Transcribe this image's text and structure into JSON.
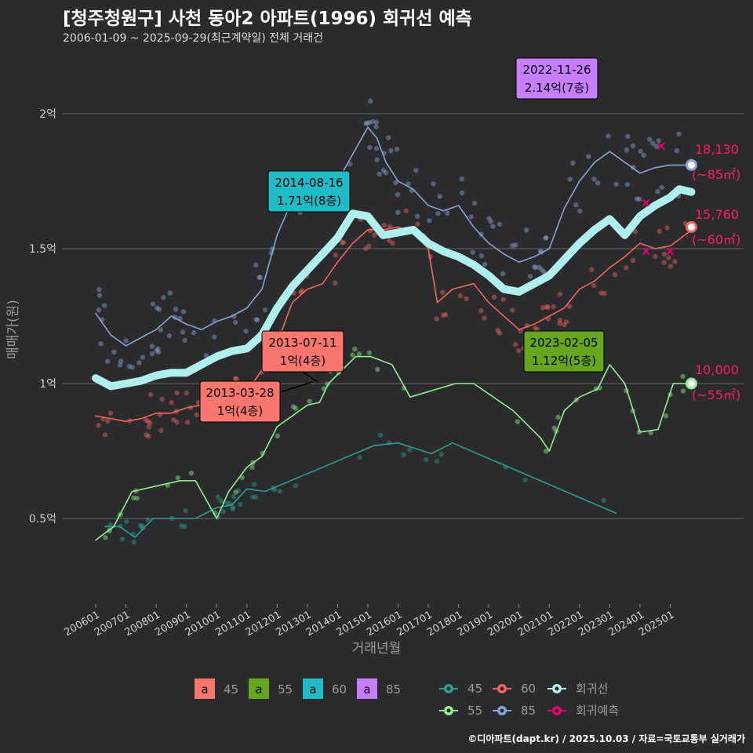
{
  "title": "[청주청원구] 사천 동아2 아파트(1996) 회귀선 예측",
  "subtitle": "2006-01-09 ~ 2025-09-29(최근계약일) 전체 거래건",
  "credit": "©디아파트(dapt.kr) / 2025.10.03 / 자료=국토교통부 실거래가",
  "chart_data": {
    "type": "line",
    "xlabel": "거래년월",
    "ylabel": "매매가(원)",
    "x_ticks": [
      "200601",
      "200701",
      "200801",
      "200901",
      "201001",
      "201101",
      "201201",
      "201301",
      "201401",
      "201501",
      "201601",
      "201701",
      "201801",
      "201901",
      "202001",
      "202101",
      "202201",
      "202301",
      "202401",
      "202501"
    ],
    "y_ticks": [
      {
        "value": 0.5,
        "label": "0.5억"
      },
      {
        "value": 1.0,
        "label": "1억"
      },
      {
        "value": 1.5,
        "label": "1.5억"
      },
      {
        "value": 2.0,
        "label": "2억"
      }
    ],
    "ylim": [
      0.22,
      2.25
    ],
    "xlim": [
      2005.7,
      2026.5
    ],
    "series": [
      {
        "name": "45",
        "color": "#2a9d8f",
        "points": [
          [
            2006.3,
            0.47
          ],
          [
            2006.8,
            0.47
          ],
          [
            2007.3,
            0.43
          ],
          [
            2007.9,
            0.5
          ],
          [
            2009.3,
            0.5
          ],
          [
            2010.0,
            0.54
          ],
          [
            2010.5,
            0.55
          ],
          [
            2011.0,
            0.61
          ],
          [
            2011.6,
            0.6
          ],
          [
            2015.2,
            0.77
          ],
          [
            2016.0,
            0.78
          ],
          [
            2017.1,
            0.74
          ],
          [
            2017.8,
            0.78
          ],
          [
            2023.2,
            0.52
          ]
        ]
      },
      {
        "name": "55",
        "color": "#90ee90",
        "points": [
          [
            2006.0,
            0.42
          ],
          [
            2006.6,
            0.47
          ],
          [
            2007.2,
            0.6
          ],
          [
            2008.0,
            0.62
          ],
          [
            2008.8,
            0.64
          ],
          [
            2009.3,
            0.64
          ],
          [
            2010.0,
            0.5
          ],
          [
            2010.4,
            0.6
          ],
          [
            2011.0,
            0.69
          ],
          [
            2011.5,
            0.73
          ],
          [
            2012.0,
            0.84
          ],
          [
            2012.5,
            0.88
          ],
          [
            2013.0,
            0.92
          ],
          [
            2013.4,
            0.93
          ],
          [
            2013.7,
            1.0
          ],
          [
            2014.6,
            1.1
          ],
          [
            2015.1,
            1.1
          ],
          [
            2015.8,
            1.07
          ],
          [
            2016.4,
            0.95
          ],
          [
            2017.9,
            1.0
          ],
          [
            2018.5,
            1.0
          ],
          [
            2019.8,
            0.9
          ],
          [
            2020.7,
            0.8
          ],
          [
            2021.0,
            0.75
          ],
          [
            2021.5,
            0.9
          ],
          [
            2022.0,
            0.95
          ],
          [
            2022.6,
            0.98
          ],
          [
            2023.0,
            1.07
          ],
          [
            2023.5,
            1.0
          ],
          [
            2024.0,
            0.82
          ],
          [
            2024.6,
            0.83
          ],
          [
            2025.1,
            1.0
          ],
          [
            2025.6,
            1.0
          ]
        ]
      },
      {
        "name": "60",
        "color": "#f0665e",
        "points": [
          [
            2006.0,
            0.88
          ],
          [
            2006.5,
            0.87
          ],
          [
            2007.0,
            0.86
          ],
          [
            2007.5,
            0.87
          ],
          [
            2008.0,
            0.89
          ],
          [
            2008.5,
            0.89
          ],
          [
            2009.0,
            0.91
          ],
          [
            2009.5,
            0.92
          ],
          [
            2010.0,
            0.93
          ],
          [
            2010.5,
            0.94
          ],
          [
            2011.0,
            0.97
          ],
          [
            2011.5,
            1.05
          ],
          [
            2012.0,
            1.15
          ],
          [
            2012.5,
            1.3
          ],
          [
            2013.0,
            1.35
          ],
          [
            2013.5,
            1.37
          ],
          [
            2014.0,
            1.45
          ],
          [
            2014.5,
            1.52
          ],
          [
            2015.0,
            1.57
          ],
          [
            2015.5,
            1.57
          ],
          [
            2016.0,
            1.58
          ],
          [
            2016.5,
            1.56
          ],
          [
            2017.0,
            1.5
          ],
          [
            2017.3,
            1.3
          ],
          [
            2017.8,
            1.35
          ],
          [
            2018.5,
            1.37
          ],
          [
            2019.0,
            1.3
          ],
          [
            2019.5,
            1.25
          ],
          [
            2020.0,
            1.2
          ],
          [
            2020.5,
            1.22
          ],
          [
            2021.0,
            1.25
          ],
          [
            2021.5,
            1.28
          ],
          [
            2022.0,
            1.35
          ],
          [
            2022.5,
            1.38
          ],
          [
            2023.0,
            1.43
          ],
          [
            2023.5,
            1.47
          ],
          [
            2024.0,
            1.52
          ],
          [
            2024.5,
            1.5
          ],
          [
            2025.0,
            1.51
          ],
          [
            2025.6,
            1.56
          ]
        ]
      },
      {
        "name": "85",
        "color": "#8aa4d6",
        "points": [
          [
            2006.0,
            1.26
          ],
          [
            2006.5,
            1.18
          ],
          [
            2007.0,
            1.14
          ],
          [
            2007.5,
            1.17
          ],
          [
            2008.0,
            1.2
          ],
          [
            2008.5,
            1.25
          ],
          [
            2009.0,
            1.22
          ],
          [
            2009.5,
            1.2
          ],
          [
            2010.0,
            1.23
          ],
          [
            2010.5,
            1.25
          ],
          [
            2011.0,
            1.28
          ],
          [
            2011.5,
            1.35
          ],
          [
            2012.0,
            1.55
          ],
          [
            2012.5,
            1.68
          ],
          [
            2013.0,
            1.72
          ],
          [
            2013.5,
            1.7
          ],
          [
            2014.0,
            1.75
          ],
          [
            2014.5,
            1.85
          ],
          [
            2015.0,
            1.95
          ],
          [
            2015.3,
            1.91
          ],
          [
            2015.6,
            1.82
          ],
          [
            2016.0,
            1.75
          ],
          [
            2016.5,
            1.72
          ],
          [
            2017.0,
            1.66
          ],
          [
            2017.5,
            1.64
          ],
          [
            2018.0,
            1.66
          ],
          [
            2018.5,
            1.58
          ],
          [
            2019.0,
            1.52
          ],
          [
            2019.5,
            1.48
          ],
          [
            2020.0,
            1.45
          ],
          [
            2020.5,
            1.47
          ],
          [
            2021.0,
            1.5
          ],
          [
            2021.5,
            1.65
          ],
          [
            2022.0,
            1.75
          ],
          [
            2022.5,
            1.82
          ],
          [
            2023.0,
            1.86
          ],
          [
            2023.5,
            1.82
          ],
          [
            2024.0,
            1.78
          ],
          [
            2024.5,
            1.8
          ],
          [
            2025.0,
            1.81
          ],
          [
            2025.6,
            1.81
          ]
        ]
      },
      {
        "name": "회귀선",
        "color": "#aff0ee",
        "points": [
          [
            2006.0,
            1.02
          ],
          [
            2006.5,
            0.99
          ],
          [
            2007.0,
            1.0
          ],
          [
            2007.5,
            1.01
          ],
          [
            2008.0,
            1.03
          ],
          [
            2008.5,
            1.04
          ],
          [
            2009.0,
            1.04
          ],
          [
            2009.5,
            1.07
          ],
          [
            2010.0,
            1.1
          ],
          [
            2010.5,
            1.12
          ],
          [
            2011.0,
            1.13
          ],
          [
            2011.5,
            1.18
          ],
          [
            2012.0,
            1.28
          ],
          [
            2012.5,
            1.36
          ],
          [
            2013.0,
            1.42
          ],
          [
            2013.5,
            1.48
          ],
          [
            2014.0,
            1.54
          ],
          [
            2014.5,
            1.63
          ],
          [
            2015.0,
            1.62
          ],
          [
            2015.5,
            1.55
          ],
          [
            2016.0,
            1.56
          ],
          [
            2016.5,
            1.57
          ],
          [
            2017.0,
            1.52
          ],
          [
            2017.5,
            1.49
          ],
          [
            2018.0,
            1.47
          ],
          [
            2018.5,
            1.44
          ],
          [
            2019.0,
            1.4
          ],
          [
            2019.5,
            1.35
          ],
          [
            2020.0,
            1.34
          ],
          [
            2020.5,
            1.37
          ],
          [
            2021.0,
            1.4
          ],
          [
            2021.5,
            1.46
          ],
          [
            2022.0,
            1.52
          ],
          [
            2022.5,
            1.57
          ],
          [
            2023.0,
            1.61
          ],
          [
            2023.5,
            1.55
          ],
          [
            2024.0,
            1.62
          ],
          [
            2024.5,
            1.66
          ],
          [
            2025.0,
            1.69
          ],
          [
            2025.3,
            1.72
          ],
          [
            2025.7,
            1.71
          ]
        ]
      }
    ],
    "forecast_points": [
      [
        2024.2,
        1.67
      ],
      [
        2024.7,
        1.88
      ],
      [
        2024.2,
        1.49
      ],
      [
        2025.0,
        1.49
      ]
    ],
    "annotations": [
      {
        "date": "2022-11-26",
        "value": "2.14억(7층)",
        "fill": "#c77dff",
        "text_color": "#000000"
      },
      {
        "date": "2014-08-16",
        "value": "1.71억(8층)",
        "fill": "#1fbcc6",
        "text_color": "#000000"
      },
      {
        "date": "2013-07-11",
        "value": "1억(4층)",
        "fill": "#f8766d",
        "text_color": "#000000"
      },
      {
        "date": "2013-03-28",
        "value": "1억(4층)",
        "fill": "#f8766d",
        "text_color": "#000000"
      },
      {
        "date": "2023-02-05",
        "value": "1.12억(5층)",
        "fill": "#66a61e",
        "text_color": "#000000"
      }
    ],
    "end_labels": [
      {
        "price": "18,130",
        "area": "(~85㎡)",
        "color": "#ff1a66"
      },
      {
        "price": "15,760",
        "area": "(~60㎡)",
        "color": "#ff1a66"
      },
      {
        "price": "10,000",
        "area": "(~55㎡)",
        "color": "#ff1a66"
      }
    ],
    "legend_fill": {
      "items": [
        {
          "label": "45",
          "color": "#f8766d"
        },
        {
          "label": "55",
          "color": "#66a61e"
        },
        {
          "label": "60",
          "color": "#1fbcc6"
        },
        {
          "label": "85",
          "color": "#c77dff"
        }
      ],
      "glyph": "a"
    },
    "legend_line": {
      "items": [
        {
          "label": "45",
          "color": "#2a9d8f"
        },
        {
          "label": "60",
          "color": "#f0665e"
        },
        {
          "label": "회귀선",
          "color": "#aff0ee"
        },
        {
          "label": "55",
          "color": "#90ee90"
        },
        {
          "label": "85",
          "color": "#8aa4d6"
        },
        {
          "label": "회귀예측",
          "color": "#e6006e"
        }
      ]
    }
  }
}
